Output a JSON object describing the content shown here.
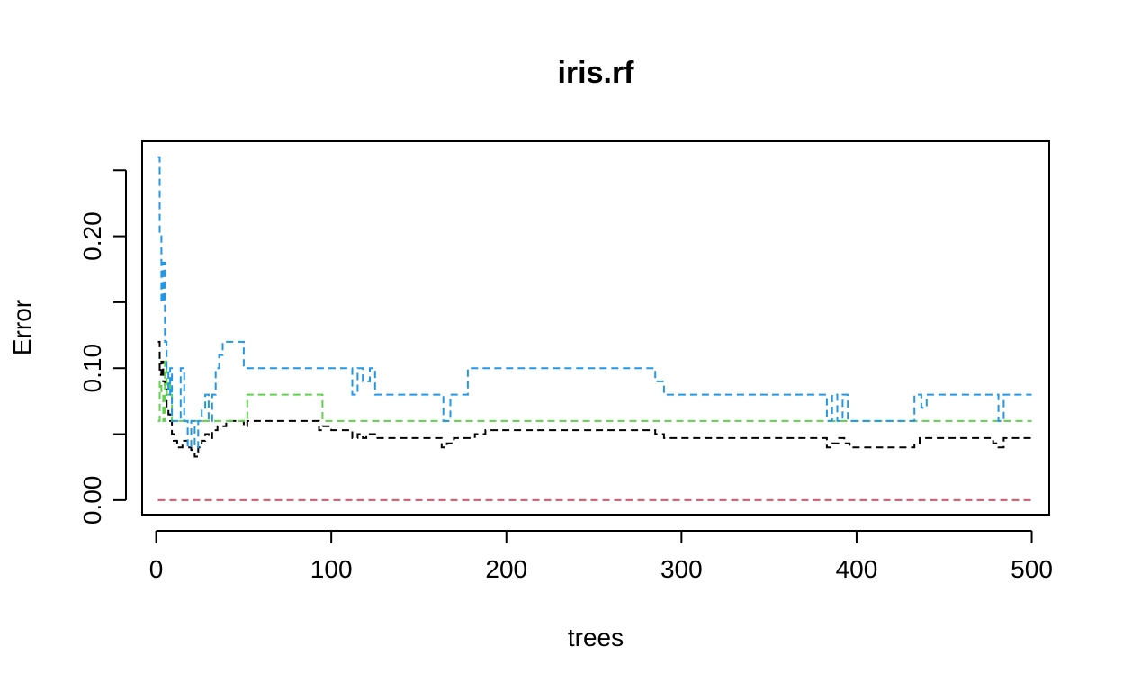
{
  "chart_data": {
    "type": "line",
    "title": "iris.rf",
    "xlabel": "trees",
    "ylabel": "Error",
    "xlim": [
      -8,
      510
    ],
    "ylim": [
      -0.011,
      0.272
    ],
    "xticks": [
      0,
      100,
      200,
      300,
      400,
      500
    ],
    "xtick_labels": [
      "0",
      "100",
      "200",
      "300",
      "400",
      "500"
    ],
    "yticks": [
      0.0,
      0.05,
      0.1,
      0.15,
      0.2,
      0.25
    ],
    "ytick_labels": [
      "0.00",
      "",
      "0.10",
      "",
      "0.20",
      ""
    ],
    "grid": false,
    "line_style": "dashed",
    "series": [
      {
        "color": "#000000",
        "points": [
          [
            1,
            0.12
          ],
          [
            2,
            0.095
          ],
          [
            3,
            0.105
          ],
          [
            4,
            0.09
          ],
          [
            5,
            0.085
          ],
          [
            6,
            0.07
          ],
          [
            7,
            0.065
          ],
          [
            8,
            0.06
          ],
          [
            9,
            0.05
          ],
          [
            10,
            0.045
          ],
          [
            12,
            0.04
          ],
          [
            15,
            0.045
          ],
          [
            18,
            0.04
          ],
          [
            20,
            0.038
          ],
          [
            22,
            0.033
          ],
          [
            24,
            0.04
          ],
          [
            26,
            0.045
          ],
          [
            28,
            0.05
          ],
          [
            30,
            0.047
          ],
          [
            32,
            0.053
          ],
          [
            35,
            0.056
          ],
          [
            40,
            0.06
          ],
          [
            45,
            0.06
          ],
          [
            50,
            0.056
          ],
          [
            52,
            0.06
          ],
          [
            90,
            0.06
          ],
          [
            93,
            0.053
          ],
          [
            95,
            0.056
          ],
          [
            100,
            0.053
          ],
          [
            110,
            0.053
          ],
          [
            112,
            0.047
          ],
          [
            115,
            0.05
          ],
          [
            118,
            0.047
          ],
          [
            120,
            0.05
          ],
          [
            125,
            0.047
          ],
          [
            160,
            0.047
          ],
          [
            163,
            0.04
          ],
          [
            166,
            0.043
          ],
          [
            170,
            0.047
          ],
          [
            180,
            0.047
          ],
          [
            182,
            0.05
          ],
          [
            188,
            0.053
          ],
          [
            280,
            0.053
          ],
          [
            285,
            0.05
          ],
          [
            290,
            0.047
          ],
          [
            380,
            0.047
          ],
          [
            383,
            0.04
          ],
          [
            386,
            0.043
          ],
          [
            390,
            0.047
          ],
          [
            393,
            0.043
          ],
          [
            396,
            0.04
          ],
          [
            430,
            0.04
          ],
          [
            433,
            0.043
          ],
          [
            436,
            0.047
          ],
          [
            475,
            0.047
          ],
          [
            478,
            0.043
          ],
          [
            481,
            0.04
          ],
          [
            484,
            0.047
          ],
          [
            500,
            0.047
          ]
        ]
      },
      {
        "color": "#DF536B",
        "points": [
          [
            1,
            0.0
          ],
          [
            500,
            0.0
          ]
        ]
      },
      {
        "color": "#61D04F",
        "points": [
          [
            1,
            0.06
          ],
          [
            2,
            0.09
          ],
          [
            3,
            0.08
          ],
          [
            4,
            0.06
          ],
          [
            5,
            0.105
          ],
          [
            6,
            0.08
          ],
          [
            7,
            0.09
          ],
          [
            8,
            0.08
          ],
          [
            9,
            0.06
          ],
          [
            30,
            0.06
          ],
          [
            50,
            0.06
          ],
          [
            52,
            0.08
          ],
          [
            93,
            0.08
          ],
          [
            95,
            0.06
          ],
          [
            500,
            0.06
          ]
        ]
      },
      {
        "color": "#2297E6",
        "points": [
          [
            1,
            0.26
          ],
          [
            2,
            0.2
          ],
          [
            3,
            0.15
          ],
          [
            4,
            0.18
          ],
          [
            5,
            0.12
          ],
          [
            6,
            0.1
          ],
          [
            7,
            0.08
          ],
          [
            8,
            0.1
          ],
          [
            9,
            0.06
          ],
          [
            12,
            0.06
          ],
          [
            14,
            0.1
          ],
          [
            16,
            0.06
          ],
          [
            18,
            0.04
          ],
          [
            20,
            0.06
          ],
          [
            22,
            0.04
          ],
          [
            24,
            0.06
          ],
          [
            26,
            0.07
          ],
          [
            28,
            0.08
          ],
          [
            30,
            0.06
          ],
          [
            32,
            0.08
          ],
          [
            34,
            0.1
          ],
          [
            36,
            0.11
          ],
          [
            38,
            0.12
          ],
          [
            48,
            0.12
          ],
          [
            50,
            0.1
          ],
          [
            110,
            0.1
          ],
          [
            112,
            0.08
          ],
          [
            115,
            0.1
          ],
          [
            118,
            0.09
          ],
          [
            122,
            0.1
          ],
          [
            125,
            0.08
          ],
          [
            162,
            0.08
          ],
          [
            164,
            0.06
          ],
          [
            168,
            0.08
          ],
          [
            175,
            0.08
          ],
          [
            178,
            0.1
          ],
          [
            280,
            0.1
          ],
          [
            285,
            0.09
          ],
          [
            290,
            0.08
          ],
          [
            380,
            0.08
          ],
          [
            383,
            0.06
          ],
          [
            386,
            0.08
          ],
          [
            389,
            0.06
          ],
          [
            392,
            0.08
          ],
          [
            395,
            0.06
          ],
          [
            430,
            0.06
          ],
          [
            433,
            0.08
          ],
          [
            437,
            0.07
          ],
          [
            440,
            0.08
          ],
          [
            478,
            0.08
          ],
          [
            481,
            0.06
          ],
          [
            484,
            0.08
          ],
          [
            500,
            0.08
          ]
        ]
      }
    ]
  }
}
